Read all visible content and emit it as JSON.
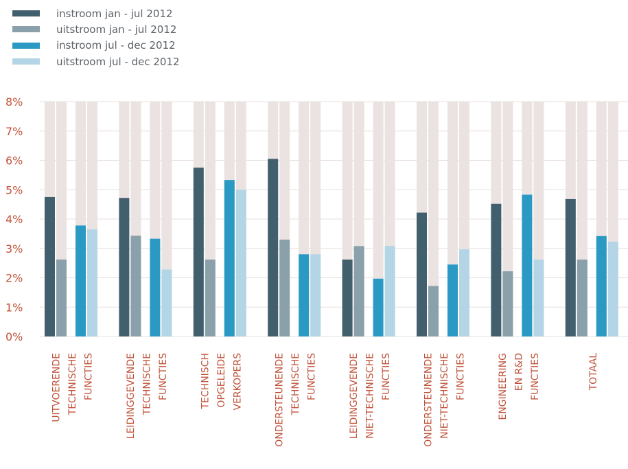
{
  "chart_data": {
    "type": "bar",
    "categories": [
      [
        "UITVOERENDE",
        "TECHNISCHE",
        "FUNCTIES"
      ],
      [
        "LEIDINGGEVENDE",
        "TECHNISCHE",
        "FUNCTIES"
      ],
      [
        "TECHNISCH",
        "OPGELEIDE",
        "VERKOPERS"
      ],
      [
        "ONDERSTEUNENDE",
        "TECHNISCHE",
        "FUNCTIES"
      ],
      [
        "LEIDINGGEVENDE",
        "NIET-TECHNISCHE",
        "FUNCTIES"
      ],
      [
        "ONDERSTEUNENDE",
        "NIET-TECHNISCHE",
        "FUNCTIES"
      ],
      [
        "ENGINEERING",
        "EN R&D",
        "FUNCTIES"
      ],
      [
        "TOTAAL"
      ]
    ],
    "series": [
      {
        "name": "instroom jan - jul 2012",
        "color": "#425f6d",
        "values": [
          4.75,
          4.72,
          5.75,
          6.05,
          2.62,
          4.22,
          4.52,
          4.68
        ]
      },
      {
        "name": "uitstroom jan - jul 2012",
        "color": "#8aa0aa",
        "values": [
          2.62,
          3.43,
          2.62,
          3.3,
          3.08,
          1.72,
          2.22,
          2.62
        ]
      },
      {
        "name": "instroom jul - dec 2012",
        "color": "#2a9ac4",
        "values": [
          3.78,
          3.33,
          5.33,
          2.8,
          1.97,
          2.45,
          4.83,
          3.42
        ]
      },
      {
        "name": "uitstroom jul - dec 2012",
        "color": "#b4d5e6",
        "values": [
          3.65,
          2.28,
          5.0,
          2.8,
          3.08,
          2.97,
          2.62,
          3.23
        ]
      }
    ],
    "ylim": [
      0,
      8
    ],
    "yticks": [
      "0%",
      "1%",
      "2%",
      "3%",
      "4%",
      "5%",
      "6%",
      "7%",
      "8%"
    ],
    "background_bar_color": "#ebe3e1",
    "grid": true,
    "legend": "top-left"
  }
}
